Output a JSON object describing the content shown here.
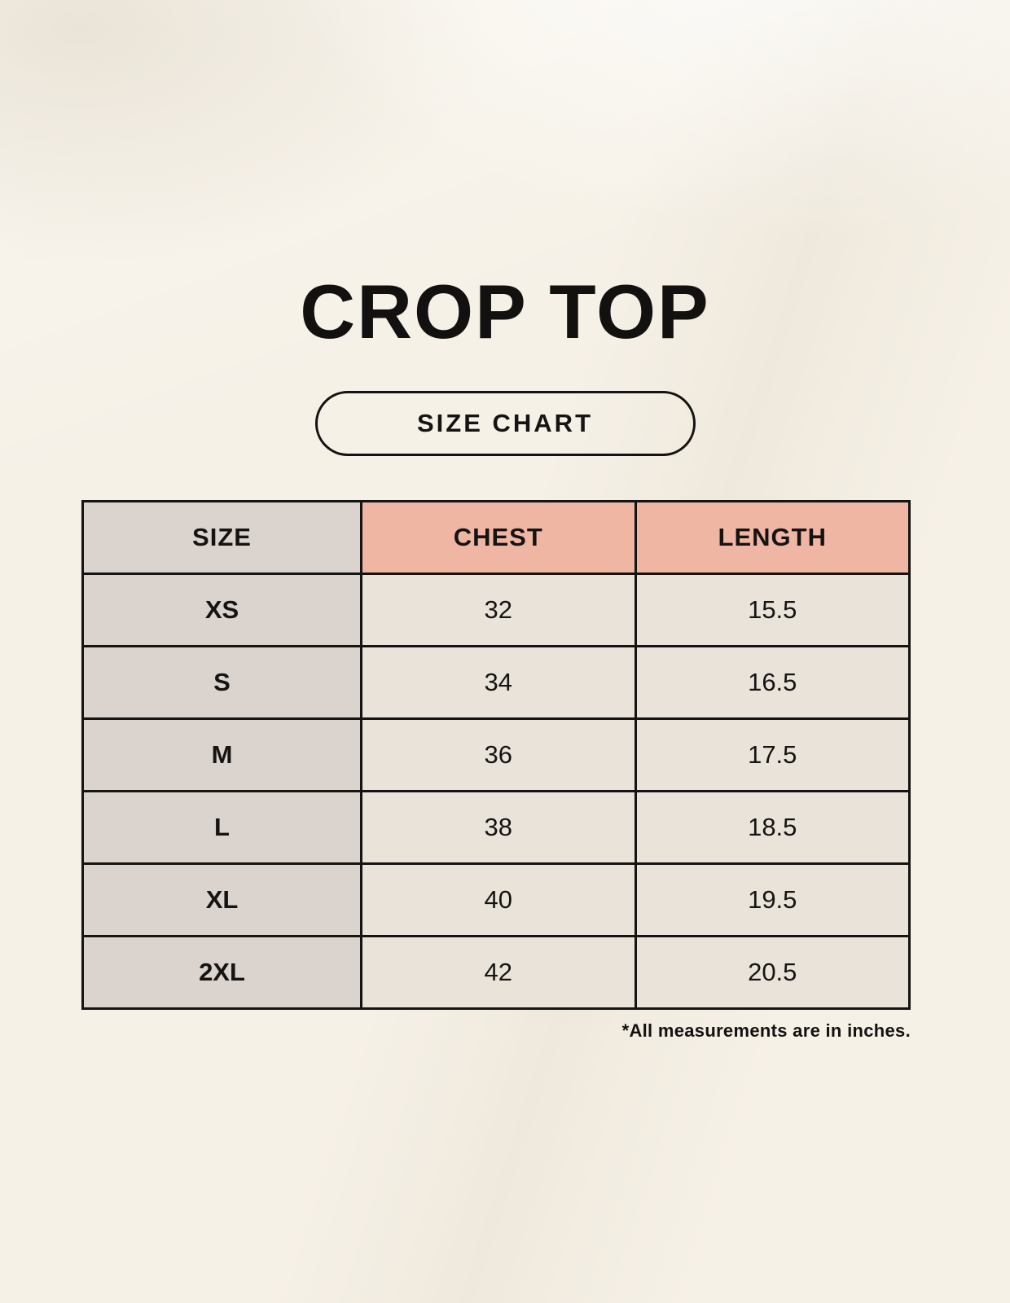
{
  "page": {
    "title": "CROP TOP",
    "size_chart_label": "SIZE CHART",
    "footnote": "*All measurements are in inches."
  },
  "chart_data": {
    "type": "table",
    "title": "CROP TOP",
    "subtitle": "SIZE CHART",
    "columns": [
      "SIZE",
      "CHEST",
      "LENGTH"
    ],
    "rows": [
      [
        "XS",
        32,
        15.5
      ],
      [
        "S",
        34,
        16.5
      ],
      [
        "M",
        36,
        17.5
      ],
      [
        "L",
        38,
        18.5
      ],
      [
        "XL",
        40,
        19.5
      ],
      [
        "2XL",
        42,
        20.5
      ]
    ],
    "units": "inches",
    "note": "*All measurements are in inches."
  },
  "colors": {
    "background": "#f6f1e7",
    "size_column_bg": "#dad3ce",
    "measure_header_bg": "#f0b6a4",
    "data_cell_bg": "#eae3d9",
    "border": "#151413",
    "text": "#131211"
  }
}
